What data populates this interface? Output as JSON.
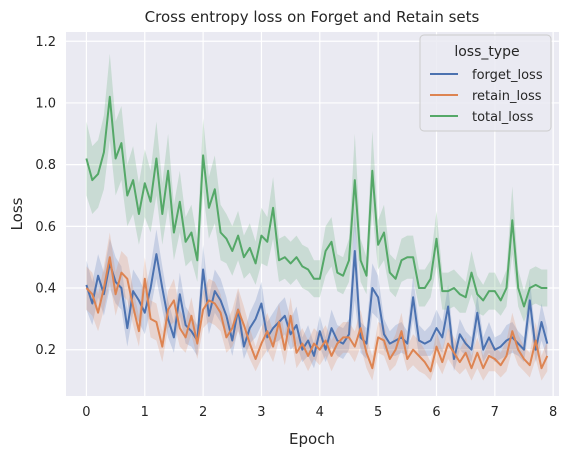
{
  "chart_data": {
    "type": "line",
    "title": "Cross entropy loss on Forget and Retain sets",
    "xlabel": "Epoch",
    "ylabel": "Loss",
    "xlim": [
      -0.35,
      8.1
    ],
    "ylim": [
      0.05,
      1.23
    ],
    "xticks": [
      "0",
      "1",
      "2",
      "3",
      "4",
      "5",
      "6",
      "7",
      "8"
    ],
    "yticks": [
      "0.2",
      "0.4",
      "0.6",
      "0.8",
      "1.0",
      "1.2"
    ],
    "grid": true,
    "legend": {
      "title": "loss_type",
      "position": "top-right"
    },
    "x": [
      0.0,
      0.1,
      0.2,
      0.3,
      0.4,
      0.5,
      0.6,
      0.7,
      0.8,
      0.9,
      1.0,
      1.1,
      1.2,
      1.3,
      1.4,
      1.5,
      1.6,
      1.7,
      1.8,
      1.9,
      2.0,
      2.1,
      2.2,
      2.3,
      2.4,
      2.5,
      2.6,
      2.7,
      2.8,
      2.9,
      3.0,
      3.1,
      3.2,
      3.3,
      3.4,
      3.5,
      3.6,
      3.7,
      3.8,
      3.9,
      4.0,
      4.1,
      4.2,
      4.3,
      4.4,
      4.5,
      4.6,
      4.7,
      4.8,
      4.9,
      5.0,
      5.1,
      5.2,
      5.3,
      5.4,
      5.5,
      5.6,
      5.7,
      5.8,
      5.9,
      6.0,
      6.1,
      6.2,
      6.3,
      6.4,
      6.5,
      6.6,
      6.7,
      6.8,
      6.9,
      7.0,
      7.1,
      7.2,
      7.3,
      7.4,
      7.5,
      7.6,
      7.7,
      7.8,
      7.9
    ],
    "series": [
      {
        "name": "forget_loss",
        "color": "#4c72b0",
        "values": [
          0.41,
          0.35,
          0.44,
          0.38,
          0.48,
          0.42,
          0.4,
          0.27,
          0.39,
          0.36,
          0.32,
          0.4,
          0.51,
          0.4,
          0.3,
          0.24,
          0.38,
          0.28,
          0.26,
          0.23,
          0.46,
          0.31,
          0.39,
          0.36,
          0.31,
          0.23,
          0.33,
          0.21,
          0.27,
          0.3,
          0.35,
          0.24,
          0.27,
          0.29,
          0.31,
          0.25,
          0.28,
          0.2,
          0.23,
          0.18,
          0.26,
          0.2,
          0.27,
          0.23,
          0.22,
          0.25,
          0.52,
          0.24,
          0.22,
          0.4,
          0.37,
          0.25,
          0.22,
          0.23,
          0.24,
          0.22,
          0.37,
          0.23,
          0.22,
          0.23,
          0.27,
          0.24,
          0.34,
          0.17,
          0.25,
          0.22,
          0.2,
          0.32,
          0.2,
          0.24,
          0.2,
          0.21,
          0.23,
          0.24,
          0.22,
          0.2,
          0.36,
          0.2,
          0.29,
          0.22
        ],
        "lower": [
          0.33,
          0.28,
          0.37,
          0.31,
          0.4,
          0.35,
          0.33,
          0.21,
          0.32,
          0.29,
          0.25,
          0.33,
          0.43,
          0.33,
          0.24,
          0.19,
          0.31,
          0.22,
          0.21,
          0.18,
          0.38,
          0.25,
          0.32,
          0.29,
          0.25,
          0.18,
          0.27,
          0.17,
          0.22,
          0.24,
          0.28,
          0.19,
          0.22,
          0.23,
          0.25,
          0.2,
          0.22,
          0.16,
          0.18,
          0.14,
          0.21,
          0.16,
          0.21,
          0.18,
          0.17,
          0.2,
          0.36,
          0.19,
          0.17,
          0.32,
          0.3,
          0.2,
          0.18,
          0.18,
          0.19,
          0.18,
          0.3,
          0.18,
          0.18,
          0.18,
          0.21,
          0.19,
          0.27,
          0.13,
          0.2,
          0.18,
          0.16,
          0.26,
          0.16,
          0.19,
          0.16,
          0.17,
          0.18,
          0.19,
          0.18,
          0.16,
          0.29,
          0.16,
          0.23,
          0.17
        ],
        "upper": [
          0.49,
          0.42,
          0.51,
          0.45,
          0.56,
          0.5,
          0.47,
          0.33,
          0.46,
          0.43,
          0.39,
          0.47,
          0.59,
          0.47,
          0.36,
          0.29,
          0.45,
          0.34,
          0.31,
          0.28,
          0.54,
          0.37,
          0.46,
          0.43,
          0.37,
          0.28,
          0.39,
          0.25,
          0.32,
          0.36,
          0.42,
          0.29,
          0.32,
          0.35,
          0.37,
          0.3,
          0.34,
          0.24,
          0.28,
          0.22,
          0.31,
          0.24,
          0.33,
          0.28,
          0.27,
          0.3,
          0.66,
          0.29,
          0.27,
          0.48,
          0.44,
          0.3,
          0.26,
          0.28,
          0.29,
          0.26,
          0.44,
          0.28,
          0.26,
          0.28,
          0.33,
          0.29,
          0.41,
          0.21,
          0.3,
          0.26,
          0.24,
          0.38,
          0.24,
          0.29,
          0.24,
          0.25,
          0.28,
          0.29,
          0.26,
          0.24,
          0.43,
          0.24,
          0.35,
          0.27
        ]
      },
      {
        "name": "retain_loss",
        "color": "#dd8452",
        "values": [
          0.4,
          0.38,
          0.32,
          0.4,
          0.5,
          0.38,
          0.45,
          0.43,
          0.34,
          0.26,
          0.43,
          0.3,
          0.29,
          0.21,
          0.33,
          0.36,
          0.27,
          0.24,
          0.31,
          0.22,
          0.33,
          0.36,
          0.35,
          0.32,
          0.24,
          0.27,
          0.33,
          0.28,
          0.22,
          0.17,
          0.22,
          0.26,
          0.21,
          0.29,
          0.2,
          0.31,
          0.19,
          0.22,
          0.18,
          0.22,
          0.2,
          0.23,
          0.18,
          0.22,
          0.24,
          0.24,
          0.21,
          0.27,
          0.19,
          0.14,
          0.24,
          0.23,
          0.17,
          0.2,
          0.26,
          0.17,
          0.2,
          0.18,
          0.16,
          0.13,
          0.21,
          0.16,
          0.22,
          0.19,
          0.16,
          0.19,
          0.14,
          0.19,
          0.14,
          0.18,
          0.17,
          0.15,
          0.18,
          0.26,
          0.2,
          0.17,
          0.15,
          0.23,
          0.14,
          0.18
        ],
        "lower": [
          0.33,
          0.31,
          0.26,
          0.33,
          0.42,
          0.31,
          0.38,
          0.36,
          0.28,
          0.21,
          0.36,
          0.24,
          0.23,
          0.16,
          0.27,
          0.29,
          0.21,
          0.19,
          0.25,
          0.17,
          0.27,
          0.29,
          0.28,
          0.26,
          0.19,
          0.21,
          0.26,
          0.22,
          0.17,
          0.13,
          0.17,
          0.2,
          0.16,
          0.23,
          0.15,
          0.25,
          0.14,
          0.17,
          0.13,
          0.17,
          0.15,
          0.18,
          0.13,
          0.17,
          0.19,
          0.19,
          0.16,
          0.21,
          0.14,
          0.1,
          0.19,
          0.18,
          0.13,
          0.15,
          0.2,
          0.13,
          0.15,
          0.13,
          0.12,
          0.1,
          0.16,
          0.12,
          0.17,
          0.14,
          0.12,
          0.14,
          0.1,
          0.14,
          0.1,
          0.13,
          0.13,
          0.11,
          0.13,
          0.2,
          0.15,
          0.13,
          0.11,
          0.17,
          0.1,
          0.13
        ],
        "upper": [
          0.47,
          0.45,
          0.38,
          0.47,
          0.58,
          0.45,
          0.52,
          0.5,
          0.4,
          0.31,
          0.5,
          0.36,
          0.35,
          0.26,
          0.39,
          0.43,
          0.33,
          0.29,
          0.37,
          0.27,
          0.39,
          0.43,
          0.42,
          0.38,
          0.29,
          0.33,
          0.4,
          0.34,
          0.27,
          0.21,
          0.27,
          0.32,
          0.26,
          0.35,
          0.25,
          0.37,
          0.24,
          0.27,
          0.23,
          0.27,
          0.25,
          0.28,
          0.23,
          0.27,
          0.29,
          0.29,
          0.26,
          0.33,
          0.24,
          0.18,
          0.29,
          0.28,
          0.21,
          0.25,
          0.32,
          0.21,
          0.25,
          0.23,
          0.2,
          0.16,
          0.26,
          0.2,
          0.27,
          0.24,
          0.2,
          0.24,
          0.18,
          0.24,
          0.18,
          0.23,
          0.21,
          0.19,
          0.23,
          0.32,
          0.25,
          0.21,
          0.19,
          0.29,
          0.18,
          0.23
        ]
      },
      {
        "name": "total_loss",
        "color": "#55a868",
        "values": [
          0.82,
          0.75,
          0.77,
          0.84,
          1.02,
          0.82,
          0.87,
          0.7,
          0.75,
          0.64,
          0.74,
          0.68,
          0.82,
          0.64,
          0.78,
          0.58,
          0.68,
          0.55,
          0.58,
          0.49,
          0.83,
          0.66,
          0.72,
          0.58,
          0.56,
          0.52,
          0.57,
          0.5,
          0.53,
          0.48,
          0.57,
          0.55,
          0.66,
          0.49,
          0.5,
          0.48,
          0.5,
          0.47,
          0.46,
          0.43,
          0.43,
          0.52,
          0.55,
          0.45,
          0.44,
          0.49,
          0.75,
          0.49,
          0.44,
          0.78,
          0.54,
          0.58,
          0.45,
          0.43,
          0.49,
          0.5,
          0.5,
          0.4,
          0.4,
          0.43,
          0.56,
          0.39,
          0.39,
          0.4,
          0.38,
          0.37,
          0.45,
          0.38,
          0.36,
          0.39,
          0.39,
          0.36,
          0.4,
          0.62,
          0.4,
          0.34,
          0.4,
          0.41,
          0.4,
          0.4
        ],
        "lower": [
          0.7,
          0.64,
          0.66,
          0.72,
          0.88,
          0.7,
          0.75,
          0.6,
          0.64,
          0.54,
          0.63,
          0.58,
          0.7,
          0.54,
          0.66,
          0.49,
          0.58,
          0.47,
          0.49,
          0.42,
          0.71,
          0.56,
          0.61,
          0.49,
          0.48,
          0.44,
          0.49,
          0.43,
          0.45,
          0.41,
          0.48,
          0.47,
          0.56,
          0.42,
          0.43,
          0.41,
          0.43,
          0.4,
          0.39,
          0.37,
          0.37,
          0.44,
          0.47,
          0.39,
          0.38,
          0.42,
          0.6,
          0.42,
          0.38,
          0.65,
          0.46,
          0.49,
          0.39,
          0.37,
          0.42,
          0.43,
          0.43,
          0.34,
          0.34,
          0.37,
          0.47,
          0.33,
          0.33,
          0.34,
          0.32,
          0.32,
          0.38,
          0.32,
          0.31,
          0.33,
          0.33,
          0.31,
          0.34,
          0.51,
          0.34,
          0.29,
          0.34,
          0.35,
          0.34,
          0.34
        ],
        "upper": [
          0.94,
          0.86,
          0.88,
          0.96,
          1.16,
          0.94,
          0.99,
          0.8,
          0.86,
          0.74,
          0.85,
          0.78,
          0.94,
          0.74,
          0.9,
          0.67,
          0.78,
          0.63,
          0.67,
          0.56,
          0.95,
          0.76,
          0.83,
          0.67,
          0.64,
          0.6,
          0.65,
          0.57,
          0.61,
          0.55,
          0.66,
          0.63,
          0.76,
          0.56,
          0.57,
          0.55,
          0.57,
          0.54,
          0.53,
          0.49,
          0.49,
          0.6,
          0.63,
          0.51,
          0.5,
          0.56,
          0.9,
          0.56,
          0.5,
          0.91,
          0.62,
          0.67,
          0.51,
          0.49,
          0.56,
          0.57,
          0.57,
          0.46,
          0.46,
          0.49,
          0.65,
          0.45,
          0.45,
          0.46,
          0.44,
          0.42,
          0.52,
          0.44,
          0.41,
          0.45,
          0.45,
          0.41,
          0.46,
          0.73,
          0.46,
          0.39,
          0.46,
          0.47,
          0.46,
          0.46
        ]
      }
    ]
  }
}
